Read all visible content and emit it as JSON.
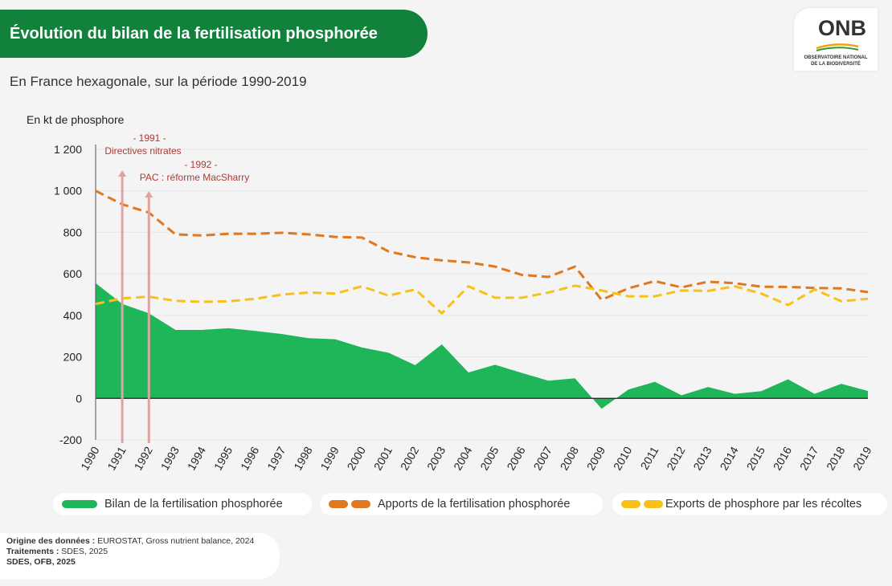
{
  "header": {
    "title": "Évolution du bilan de la fertilisation phosphorée",
    "subtitle": "En France hexagonale, sur la période 1990-2019"
  },
  "logo": {
    "word": "ONB",
    "line1": "OBSERVATOIRE NATIONAL",
    "line2": "DE LA BIODIVERSITÉ"
  },
  "chart_data": {
    "type": "line",
    "ylabel": "En kt de phosphore",
    "ylim": [
      -200,
      1200
    ],
    "yticks": [
      -200,
      0,
      200,
      400,
      600,
      800,
      1000,
      1200
    ],
    "ytick_labels": [
      "-200",
      "0",
      "200",
      "400",
      "600",
      "800",
      "1 000",
      "1 200"
    ],
    "categories": [
      "1990",
      "1991",
      "1992",
      "1993",
      "1994",
      "1995",
      "1996",
      "1997",
      "1998",
      "1999",
      "2000",
      "2001",
      "2002",
      "2003",
      "2004",
      "2005",
      "2006",
      "2007",
      "2008",
      "2009",
      "2010",
      "2011",
      "2012",
      "2013",
      "2014",
      "2015",
      "2016",
      "2017",
      "2018",
      "2019"
    ],
    "series": [
      {
        "name": "Bilan de la fertilisation phosphorée",
        "style": "area",
        "color": "#1fb659",
        "values": [
          555,
          455,
          410,
          330,
          330,
          338,
          325,
          310,
          290,
          285,
          245,
          220,
          160,
          260,
          125,
          162,
          123,
          85,
          97,
          -50,
          42,
          80,
          15,
          55,
          22,
          35,
          92,
          22,
          70,
          36
        ]
      },
      {
        "name": "Apports de la fertilisation phosphorée",
        "style": "dashed",
        "color": "#e07820",
        "values": [
          1000,
          935,
          895,
          790,
          785,
          793,
          793,
          798,
          790,
          778,
          775,
          708,
          680,
          665,
          655,
          635,
          595,
          585,
          635,
          475,
          530,
          565,
          535,
          562,
          555,
          538,
          537,
          532,
          530,
          512
        ]
      },
      {
        "name": "Exports de phosphore par les récoltes",
        "style": "dashed",
        "color": "#f8c11a",
        "values": [
          455,
          482,
          490,
          470,
          465,
          468,
          480,
          500,
          510,
          505,
          540,
          495,
          525,
          410,
          540,
          485,
          485,
          510,
          543,
          520,
          492,
          492,
          520,
          518,
          540,
          505,
          450,
          525,
          468,
          480
        ]
      }
    ],
    "annotations": [
      {
        "year": "1991",
        "label_year": "- 1991 -",
        "label": "Directives nitrates"
      },
      {
        "year": "1992",
        "label_year": "- 1992 -",
        "label": "PAC : réforme MacSharry"
      }
    ],
    "grid": "horizontal",
    "legend_position": "bottom"
  },
  "source": {
    "origin_label": "Origine des données :",
    "origin_value": "EUROSTAT, Gross nutrient balance, 2024",
    "treatment_label": "Traitements :",
    "treatment_value": "SDES, 2025",
    "credit": "SDES, OFB, 2025"
  },
  "colors": {
    "banner": "#12813c",
    "annotation": "#b03a35",
    "arrow": "#e2a3a0"
  }
}
